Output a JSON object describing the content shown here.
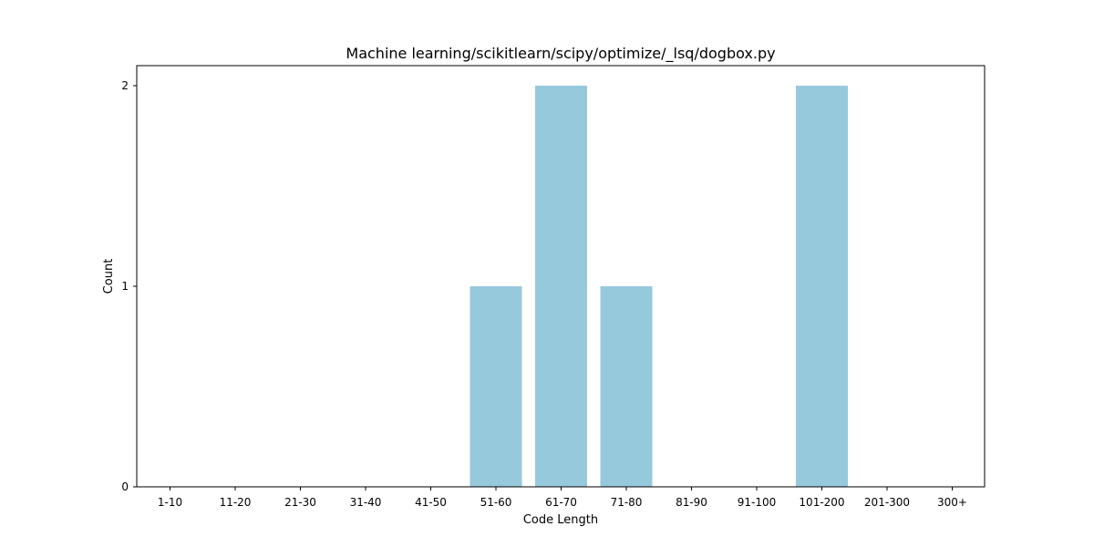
{
  "chart_data": {
    "type": "bar",
    "title": "Machine learning/scikitlearn/scipy/optimize/_lsq/dogbox.py",
    "xlabel": "Code Length",
    "ylabel": "Count",
    "categories": [
      "1-10",
      "11-20",
      "21-30",
      "31-40",
      "41-50",
      "51-60",
      "61-70",
      "71-80",
      "81-90",
      "91-100",
      "101-200",
      "201-300",
      "300+"
    ],
    "values": [
      0,
      0,
      0,
      0,
      0,
      1,
      2,
      1,
      0,
      0,
      2,
      0,
      0
    ],
    "yticks": [
      0,
      1,
      2
    ],
    "ylim": [
      0,
      2.1
    ],
    "grid": false,
    "bar_color": "#96c9dc"
  }
}
